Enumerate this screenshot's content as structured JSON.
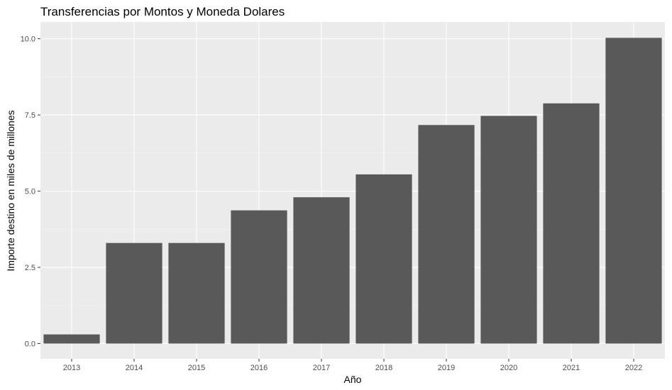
{
  "chart_data": {
    "type": "bar",
    "title": "Transferencias por Montos y Moneda Dolares",
    "xlabel": "Año",
    "ylabel": "Importe destino en miles de millones",
    "categories": [
      "2013",
      "2014",
      "2015",
      "2016",
      "2017",
      "2018",
      "2019",
      "2020",
      "2021",
      "2022"
    ],
    "values": [
      0.3,
      3.3,
      3.3,
      4.37,
      4.8,
      5.55,
      7.17,
      7.47,
      7.88,
      10.03
    ],
    "ylim": [
      -0.5,
      10.55
    ],
    "yticks": [
      0,
      2.5,
      5,
      7.5,
      10
    ],
    "ytick_labels": [
      "0.0",
      "2.5",
      "5.0",
      "7.5",
      "10.0"
    ],
    "grid": true,
    "colors": {
      "bar": "#595959",
      "panel": "#ebebeb",
      "grid_major": "#ffffff"
    }
  }
}
